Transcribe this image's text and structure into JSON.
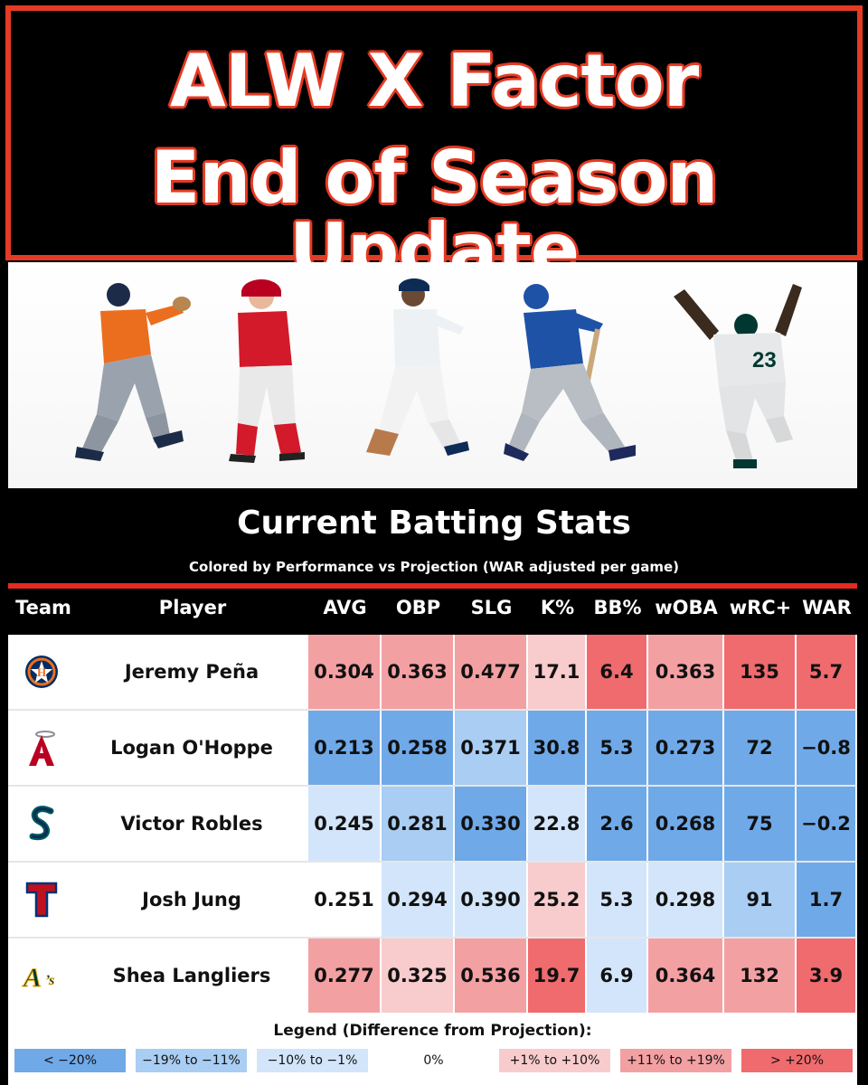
{
  "header": {
    "line1": "ALW X Factor",
    "line2": "End of Season Update"
  },
  "section": {
    "title": "Current Batting Stats",
    "subtitle": "Colored by Performance vs Projection (WAR adjusted per game)"
  },
  "columns": [
    "Team",
    "Player",
    "AVG",
    "OBP",
    "SLG",
    "K%",
    "BB%",
    "wOBA",
    "wRC+",
    "WAR"
  ],
  "players": [
    {
      "team_icon": "astros-logo-icon",
      "name": "Jeremy Peña",
      "stats": [
        "0.304",
        "0.363",
        "0.477",
        "17.1",
        "6.4",
        "0.363",
        "135",
        "5.7"
      ],
      "colors": [
        "#f3a0a3",
        "#f3a0a3",
        "#f3a0a3",
        "#f8cbcd",
        "#ef6b6e",
        "#f3a0a3",
        "#ef6b6e",
        "#ef6b6e"
      ]
    },
    {
      "team_icon": "angels-logo-icon",
      "name": "Logan O'Hoppe",
      "stats": [
        "0.213",
        "0.258",
        "0.371",
        "30.8",
        "5.3",
        "0.273",
        "72",
        "−0.8"
      ],
      "colors": [
        "#6fa9e8",
        "#6fa9e8",
        "#a9cdf3",
        "#6fa9e8",
        "#6fa9e8",
        "#6fa9e8",
        "#6fa9e8",
        "#6fa9e8"
      ]
    },
    {
      "team_icon": "mariners-logo-icon",
      "name": "Victor Robles",
      "stats": [
        "0.245",
        "0.281",
        "0.330",
        "22.8",
        "2.6",
        "0.268",
        "75",
        "−0.2"
      ],
      "colors": [
        "#d2e5fa",
        "#a9cdf3",
        "#6fa9e8",
        "#d2e5fa",
        "#6fa9e8",
        "#6fa9e8",
        "#6fa9e8",
        "#6fa9e8"
      ]
    },
    {
      "team_icon": "rangers-logo-icon",
      "name": "Josh Jung",
      "stats": [
        "0.251",
        "0.294",
        "0.390",
        "25.2",
        "5.3",
        "0.298",
        "91",
        "1.7"
      ],
      "colors": [
        "#ffffff",
        "#d2e5fa",
        "#d2e5fa",
        "#f8cbcd",
        "#d2e5fa",
        "#d2e5fa",
        "#a9cdf3",
        "#6fa9e8"
      ]
    },
    {
      "team_icon": "athletics-logo-icon",
      "name": "Shea Langliers",
      "stats": [
        "0.277",
        "0.325",
        "0.536",
        "19.7",
        "6.9",
        "0.364",
        "132",
        "3.9"
      ],
      "colors": [
        "#f3a0a3",
        "#f8cbcd",
        "#f3a0a3",
        "#ef6b6e",
        "#d2e5fa",
        "#f3a0a3",
        "#f3a0a3",
        "#ef6b6e"
      ]
    }
  ],
  "legend": {
    "title": "Legend (Difference from Projection):",
    "items": [
      {
        "label": "< −20%",
        "color": "#6fa9e8"
      },
      {
        "label": "−19% to −11%",
        "color": "#a9cdf3"
      },
      {
        "label": "−10% to −1%",
        "color": "#d2e5fa"
      },
      {
        "label": "0%",
        "color": "#ffffff"
      },
      {
        "label": "+1% to +10%",
        "color": "#f8cbcd"
      },
      {
        "label": "+11% to +19%",
        "color": "#f3a0a3"
      },
      {
        "label": "> +20%",
        "color": "#ef6b6e"
      }
    ]
  },
  "colors": {
    "accent_red": "#e53a23",
    "background": "#000000"
  }
}
